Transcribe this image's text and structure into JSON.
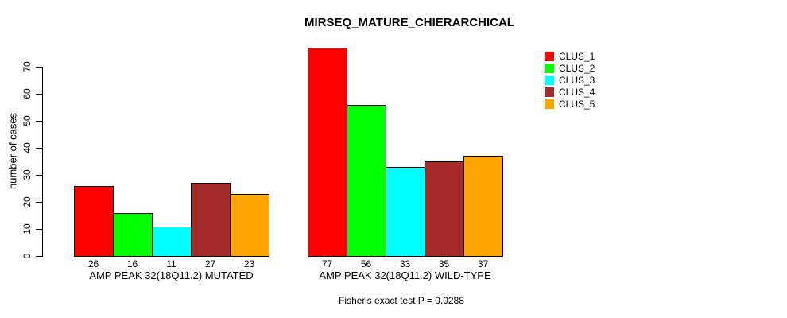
{
  "chart_data": {
    "type": "bar",
    "title": "MIRSEQ_MATURE_CHIERARCHICAL",
    "ylabel": "number of cases",
    "ylim": [
      0,
      70
    ],
    "yticks": [
      0,
      10,
      20,
      30,
      40,
      50,
      60,
      70
    ],
    "grid": false,
    "legend_position": "top-right",
    "legend": [
      {
        "label": "CLUS_1",
        "color": "#FF0000"
      },
      {
        "label": "CLUS_2",
        "color": "#00FF00"
      },
      {
        "label": "CLUS_3",
        "color": "#00FFFF"
      },
      {
        "label": "CLUS_4",
        "color": "#A52A2A"
      },
      {
        "label": "CLUS_5",
        "color": "#FFA500"
      }
    ],
    "groups": [
      {
        "label": "AMP PEAK 32(18Q11.2) MUTATED",
        "values": [
          26,
          16,
          11,
          27,
          23
        ]
      },
      {
        "label": "AMP PEAK 32(18Q11.2) WILD-TYPE",
        "values": [
          77,
          56,
          33,
          35,
          37
        ]
      }
    ],
    "footnote": "Fisher's exact test P = 0.0288"
  }
}
